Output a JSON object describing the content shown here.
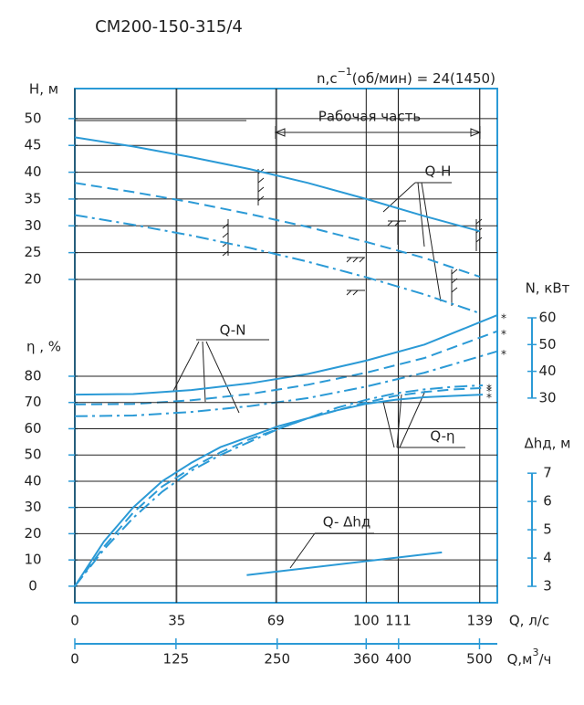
{
  "title": "СМ200-150-315/4",
  "speed_label": {
    "prefix": "n,c",
    "sup": "−1",
    "suffix": "(об/мин) = 24(1450)"
  },
  "working_zone_label": "Рабочая часть",
  "x_axis": {
    "label": "Q, л/с",
    "xlim": [
      0,
      145
    ],
    "xticks": [
      0,
      35,
      69,
      100,
      111,
      139
    ]
  },
  "x2_axis": {
    "label": {
      "prefix": "Q,м",
      "sup": "3",
      "suffix": "/ч"
    },
    "xlim": [
      0,
      522
    ],
    "xticks": [
      0,
      125,
      250,
      360,
      400,
      500
    ]
  },
  "chart_data": [
    {
      "type": "line",
      "axis_label": "H, м",
      "curve_label": "Q-H",
      "axis_side": "left",
      "grid": true,
      "ylim": [
        -40.3,
        55.6
      ],
      "yticks": [
        20,
        25,
        30,
        35,
        40,
        45,
        50
      ],
      "x": [
        0,
        20,
        40,
        60,
        80,
        100,
        120,
        139
      ],
      "series": [
        {
          "color": "#2b9ad6",
          "dash": "solid",
          "values": [
            46.5,
            44.8,
            42.8,
            40.6,
            38,
            35,
            31.8,
            29
          ]
        },
        {
          "color": "#2b9ad6",
          "dash": "dashed",
          "values": [
            38,
            36.3,
            34.4,
            32.2,
            29.8,
            27,
            24,
            20.5
          ]
        },
        {
          "color": "#2b9ad6",
          "dash": "dashdot",
          "values": [
            32,
            30.2,
            28.2,
            25.9,
            23.3,
            20.4,
            17.2,
            13.7
          ]
        }
      ]
    },
    {
      "type": "line",
      "axis_label": "N, кВт",
      "curve_label": "Q-N",
      "axis_side": "right",
      "grid": false,
      "ylim": [
        -46.5,
        145.7
      ],
      "yticks": [
        30,
        40,
        50,
        60
      ],
      "x": [
        0,
        20,
        40,
        60,
        80,
        100,
        120,
        145
      ],
      "series": [
        {
          "color": "#2b9ad6",
          "dash": "solid",
          "marker": "*",
          "values": [
            31.3,
            31.5,
            33,
            35.5,
            39,
            44,
            50,
            61
          ]
        },
        {
          "color": "#2b9ad6",
          "dash": "dashed",
          "marker": "*",
          "values": [
            27.6,
            27.8,
            29.2,
            31.5,
            35,
            39.5,
            45,
            55
          ]
        },
        {
          "color": "#2b9ad6",
          "dash": "dashdot",
          "marker": "*",
          "values": [
            23.2,
            23.5,
            24.8,
            27,
            30,
            34.3,
            39.5,
            47.5
          ]
        }
      ]
    },
    {
      "type": "line",
      "axis_label": "η , %",
      "curve_label": "Q-η",
      "axis_side": "left",
      "grid": true,
      "ylim": [
        -6.3,
        189.6
      ],
      "yticks": [
        0,
        10,
        20,
        30,
        40,
        50,
        60,
        70,
        80
      ],
      "x": [
        0,
        10,
        20,
        30,
        40,
        50,
        60,
        70,
        80,
        90,
        100,
        110,
        120,
        130,
        140
      ],
      "series": [
        {
          "color": "#2b9ad6",
          "dash": "solid",
          "marker": "*",
          "values": [
            0,
            17,
            30,
            40,
            47,
            53,
            57,
            61,
            64,
            67,
            69.5,
            71,
            72,
            72.5,
            73
          ]
        },
        {
          "color": "#2b9ad6",
          "dash": "dashed",
          "marker": "*",
          "values": [
            0,
            15,
            28,
            38,
            45,
            51,
            56,
            60,
            64,
            67,
            70,
            72.5,
            74,
            75,
            75.5
          ]
        },
        {
          "color": "#2b9ad6",
          "dash": "dashdot",
          "marker": "*",
          "values": [
            0,
            14,
            26,
            36,
            44,
            50,
            55,
            60,
            64,
            68,
            71,
            73.5,
            75,
            76,
            76.5
          ]
        }
      ]
    },
    {
      "type": "line",
      "axis_label": "Δhд, м",
      "curve_label": "Q- Δhд",
      "axis_side": "right",
      "grid": false,
      "ylim": [
        2.42,
        20.6
      ],
      "yticks": [
        3,
        4,
        5,
        6,
        7
      ],
      "x": [
        59,
        126
      ],
      "series": [
        {
          "color": "#2b9ad6",
          "dash": "solid",
          "values": [
            3.4,
            4.2
          ]
        }
      ]
    }
  ]
}
